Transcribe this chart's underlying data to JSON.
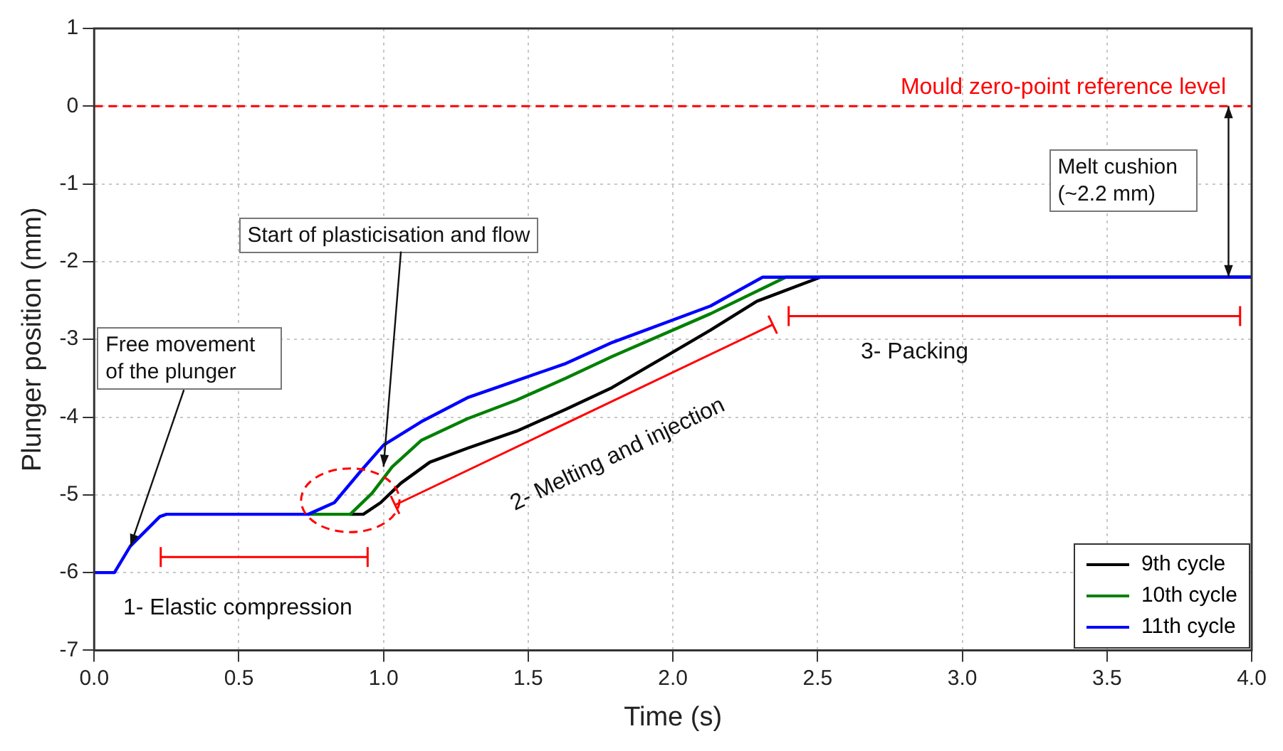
{
  "chart_data": {
    "type": "line",
    "xlabel": "Time (s)",
    "ylabel": "Plunger position (mm)",
    "xlim": [
      0,
      4
    ],
    "ylim": [
      -7,
      1
    ],
    "xticks": [
      {
        "value": 0,
        "label": "0.0"
      },
      0.5,
      {
        "value": 1,
        "label": "1.0"
      },
      1.5,
      {
        "value": 2,
        "label": "2.0"
      },
      2.5,
      {
        "value": 3,
        "label": "3.0"
      },
      3.5,
      {
        "value": 4,
        "label": "4.0"
      }
    ],
    "yticks": [
      -7,
      -6,
      -5,
      -4,
      -3,
      -2,
      -1,
      0,
      1
    ],
    "grid": true,
    "legend": "bottom right",
    "marker": "none",
    "line_style": "solid",
    "series": [
      {
        "name": "9th cycle",
        "color": "#000000",
        "x": [
          0.885,
          0.93,
          0.99,
          1.06,
          1.16,
          1.29,
          1.46,
          1.63,
          1.79,
          1.96,
          2.13,
          2.29,
          2.51,
          4
        ],
        "values": [
          -5.25,
          -5.25,
          -5.1,
          -4.85,
          -4.58,
          -4.4,
          -4.18,
          -3.9,
          -3.62,
          -3.25,
          -2.88,
          -2.51,
          -2.2,
          -2.2
        ]
      },
      {
        "name": "10th cycle",
        "color": "#008000",
        "x": [
          0.74,
          0.885,
          0.96,
          1.03,
          1.13,
          1.29,
          1.46,
          1.63,
          1.79,
          2.13,
          2.39,
          4
        ],
        "values": [
          -5.25,
          -5.25,
          -4.98,
          -4.64,
          -4.3,
          -4.02,
          -3.78,
          -3.5,
          -3.22,
          -2.67,
          -2.2,
          -2.2
        ]
      },
      {
        "name": "11th cycle",
        "color": "#0000ff",
        "x": [
          0,
          0.07,
          0.125,
          0.227,
          0.25,
          0.74,
          0.83,
          0.92,
          1,
          1.13,
          1.29,
          1.46,
          1.63,
          1.79,
          2.13,
          2.31,
          4
        ],
        "values": [
          -6,
          -6,
          -5.66,
          -5.28,
          -5.25,
          -5.25,
          -5.1,
          -4.7,
          -4.36,
          -4.06,
          -3.75,
          -3.53,
          -3.31,
          -3.04,
          -2.57,
          -2.2,
          -2.2
        ]
      }
    ],
    "ref_lines": [
      {
        "axis": "y",
        "value": 0,
        "label": "Mould zero-point reference level",
        "color": "#ff0000",
        "line_style": "dashed"
      }
    ],
    "annotations": [
      {
        "text": "Free movement of the plunger",
        "x": 0.125,
        "y": -5.66
      },
      {
        "text": "Start of plasticisation and flow",
        "x": 1,
        "y": -4.64
      },
      "Melt cushion (~2.2 mm)",
      "1- Elastic compression",
      "2- Melting and injection",
      "3- Packing"
    ]
  }
}
